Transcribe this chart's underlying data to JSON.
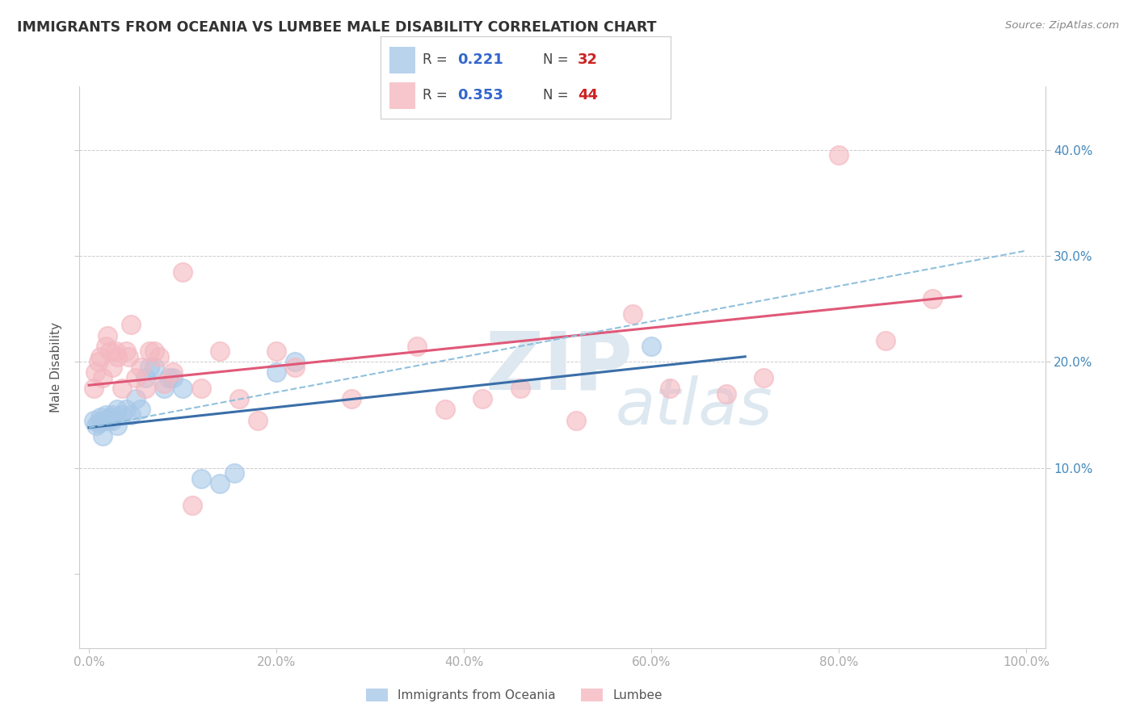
{
  "title": "IMMIGRANTS FROM OCEANIA VS LUMBEE MALE DISABILITY CORRELATION CHART",
  "source": "Source: ZipAtlas.com",
  "ylabel": "Male Disability",
  "legend_blue_r_val": "0.221",
  "legend_blue_n_val": "32",
  "legend_pink_r_val": "0.353",
  "legend_pink_n_val": "44",
  "xlim": [
    -0.01,
    1.02
  ],
  "ylim": [
    -0.07,
    0.46
  ],
  "xticks": [
    0.0,
    0.2,
    0.4,
    0.6,
    0.8,
    1.0
  ],
  "yticks": [
    0.0,
    0.1,
    0.2,
    0.3,
    0.4
  ],
  "xticklabels": [
    "0.0%",
    "20.0%",
    "40.0%",
    "60.0%",
    "80.0%",
    "100.0%"
  ],
  "right_yticklabels": [
    "10.0%",
    "20.0%",
    "30.0%",
    "40.0%"
  ],
  "blue_scatter_x": [
    0.005,
    0.008,
    0.01,
    0.012,
    0.015,
    0.015,
    0.018,
    0.018,
    0.02,
    0.022,
    0.025,
    0.025,
    0.03,
    0.03,
    0.035,
    0.04,
    0.045,
    0.05,
    0.055,
    0.06,
    0.065,
    0.07,
    0.08,
    0.085,
    0.09,
    0.1,
    0.12,
    0.14,
    0.155,
    0.2,
    0.22,
    0.6
  ],
  "blue_scatter_y": [
    0.145,
    0.14,
    0.142,
    0.148,
    0.13,
    0.145,
    0.145,
    0.15,
    0.145,
    0.148,
    0.145,
    0.15,
    0.14,
    0.155,
    0.15,
    0.155,
    0.15,
    0.165,
    0.155,
    0.185,
    0.195,
    0.195,
    0.175,
    0.185,
    0.185,
    0.175,
    0.09,
    0.085,
    0.095,
    0.19,
    0.2,
    0.215
  ],
  "pink_scatter_x": [
    0.005,
    0.007,
    0.01,
    0.012,
    0.015,
    0.018,
    0.02,
    0.022,
    0.025,
    0.028,
    0.03,
    0.035,
    0.04,
    0.042,
    0.045,
    0.05,
    0.055,
    0.06,
    0.065,
    0.07,
    0.075,
    0.08,
    0.09,
    0.1,
    0.11,
    0.12,
    0.14,
    0.16,
    0.18,
    0.2,
    0.22,
    0.28,
    0.35,
    0.38,
    0.42,
    0.46,
    0.52,
    0.58,
    0.62,
    0.68,
    0.72,
    0.8,
    0.85,
    0.9
  ],
  "pink_scatter_y": [
    0.175,
    0.19,
    0.2,
    0.205,
    0.185,
    0.215,
    0.225,
    0.21,
    0.195,
    0.21,
    0.205,
    0.175,
    0.21,
    0.205,
    0.235,
    0.185,
    0.195,
    0.175,
    0.21,
    0.21,
    0.205,
    0.18,
    0.19,
    0.285,
    0.065,
    0.175,
    0.21,
    0.165,
    0.145,
    0.21,
    0.195,
    0.165,
    0.215,
    0.155,
    0.165,
    0.175,
    0.145,
    0.245,
    0.175,
    0.17,
    0.185,
    0.395,
    0.22,
    0.26
  ],
  "blue_line_x": [
    0.0,
    0.7
  ],
  "blue_line_y": [
    0.138,
    0.205
  ],
  "pink_line_x": [
    0.0,
    0.93
  ],
  "pink_line_y": [
    0.178,
    0.262
  ],
  "blue_dash_line_x": [
    0.0,
    1.0
  ],
  "blue_dash_line_y": [
    0.138,
    0.305
  ],
  "background_color": "#ffffff",
  "grid_color": "#cccccc",
  "blue_color": "#a8c8e8",
  "pink_color": "#f4b8c0",
  "blue_line_color": "#3a6ea8",
  "pink_line_color": "#e05878",
  "blue_dash_color": "#90c0dc",
  "title_color": "#333333",
  "label_color": "#555555",
  "tick_color": "#aaaaaa",
  "right_tick_color": "#4488bb",
  "watermark_zip_color": "#dde8f0",
  "watermark_atlas_color": "#dde8f0"
}
